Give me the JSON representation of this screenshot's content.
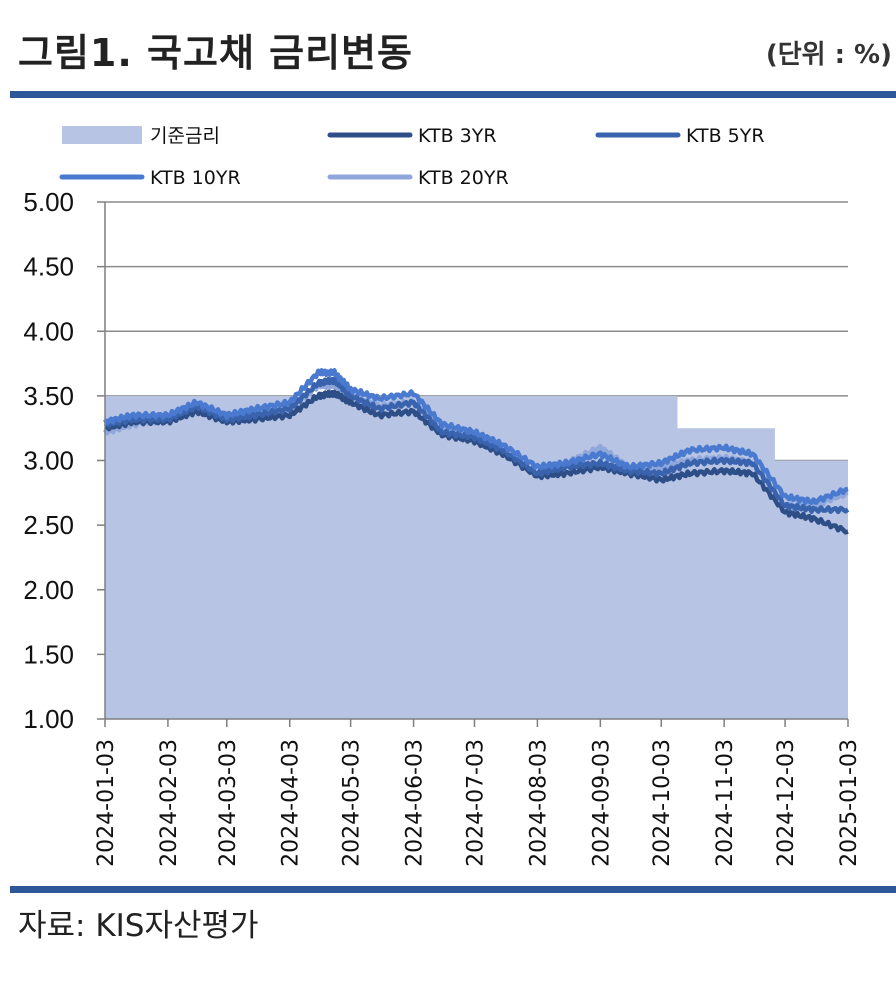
{
  "header": {
    "title": "그림1. 국고채 금리변동",
    "unit": "(단위 : %)"
  },
  "footer": {
    "source": "자료: KIS자산평가"
  },
  "colors": {
    "base_rate": "#b7c4e3",
    "ktb_3yr": "#2e4e88",
    "ktb_5yr": "#3a63ad",
    "ktb_10yr": "#4a7ad0",
    "ktb_20yr": "#8fa7db",
    "rule": "#2d5796"
  },
  "chart_data": {
    "type": "line",
    "title": "",
    "xlabel": "",
    "ylabel": "",
    "ylim": [
      1.0,
      5.0
    ],
    "yticks": [
      "5.00",
      "4.50",
      "4.00",
      "3.50",
      "3.00",
      "2.50",
      "2.00",
      "1.50",
      "1.00"
    ],
    "xticks": [
      "2024-01-03",
      "2024-02-03",
      "2024-03-03",
      "2024-04-03",
      "2024-05-03",
      "2024-06-03",
      "2024-07-03",
      "2024-08-03",
      "2024-09-03",
      "2024-10-03",
      "2024-11-03",
      "2024-12-03",
      "2025-01-03"
    ],
    "grid": true,
    "legend_position": "top",
    "x": [
      "2024-01-03",
      "2024-01-17",
      "2024-02-03",
      "2024-02-17",
      "2024-03-03",
      "2024-03-17",
      "2024-04-03",
      "2024-04-17",
      "2024-04-25",
      "2024-05-03",
      "2024-05-17",
      "2024-06-03",
      "2024-06-17",
      "2024-07-03",
      "2024-07-17",
      "2024-08-03",
      "2024-08-17",
      "2024-09-03",
      "2024-09-17",
      "2024-10-03",
      "2024-10-17",
      "2024-11-03",
      "2024-11-17",
      "2024-12-03",
      "2024-12-17",
      "2025-01-03"
    ],
    "series": [
      {
        "name": "기준금리",
        "kind": "area",
        "x": [
          "2024-01-03",
          "2024-10-11",
          "2024-10-11",
          "2024-11-28",
          "2024-11-28",
          "2025-01-03"
        ],
        "values": [
          3.5,
          3.5,
          3.25,
          3.25,
          3.0,
          3.0
        ]
      },
      {
        "name": "KTB 3YR",
        "values": [
          3.25,
          3.3,
          3.3,
          3.38,
          3.3,
          3.32,
          3.35,
          3.5,
          3.52,
          3.45,
          3.35,
          3.38,
          3.2,
          3.15,
          3.05,
          2.88,
          2.9,
          2.95,
          2.9,
          2.85,
          2.9,
          2.92,
          2.9,
          2.6,
          2.55,
          2.45
        ]
      },
      {
        "name": "KTB 5YR",
        "values": [
          3.28,
          3.32,
          3.32,
          3.42,
          3.32,
          3.35,
          3.4,
          3.6,
          3.62,
          3.5,
          3.4,
          3.45,
          3.22,
          3.18,
          3.08,
          2.9,
          2.95,
          2.98,
          2.92,
          2.9,
          2.98,
          3.0,
          2.98,
          2.65,
          2.62,
          2.62
        ]
      },
      {
        "name": "KTB 10YR",
        "values": [
          3.3,
          3.35,
          3.35,
          3.45,
          3.35,
          3.4,
          3.45,
          3.68,
          3.68,
          3.55,
          3.48,
          3.52,
          3.28,
          3.22,
          3.12,
          2.95,
          2.98,
          3.05,
          2.95,
          2.98,
          3.08,
          3.1,
          3.05,
          2.72,
          2.68,
          2.78
        ]
      },
      {
        "name": "KTB 20YR",
        "values": [
          3.22,
          3.28,
          3.32,
          3.42,
          3.35,
          3.38,
          3.4,
          3.58,
          3.58,
          3.5,
          3.42,
          3.45,
          3.25,
          3.2,
          3.1,
          2.95,
          2.98,
          3.1,
          2.95,
          2.95,
          3.0,
          3.02,
          2.98,
          2.65,
          2.65,
          2.75
        ]
      }
    ]
  }
}
